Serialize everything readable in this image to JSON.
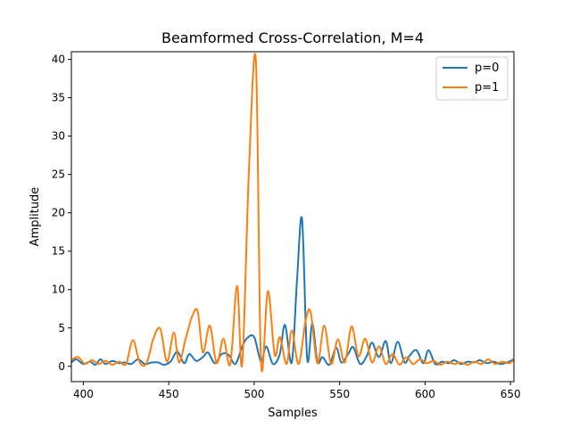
{
  "chart_data": {
    "type": "line",
    "title": "Beamformed Cross-Correlation, M=4",
    "xlabel": "Samples",
    "ylabel": "Amplitude",
    "xlim": [
      393,
      652
    ],
    "ylim": [
      -2,
      41
    ],
    "xticks": [
      400,
      450,
      500,
      550,
      600,
      650
    ],
    "yticks": [
      0,
      5,
      10,
      15,
      20,
      25,
      30,
      35,
      40
    ],
    "grid": false,
    "legend_position": "top-right",
    "series": [
      {
        "name": "p=0",
        "color": "#1f77b4",
        "x": [
          393,
          396,
          400,
          404,
          407,
          410,
          413,
          417,
          421,
          424,
          428,
          432,
          436,
          440,
          444,
          447,
          451,
          455,
          459,
          462,
          466,
          470,
          473,
          477,
          481,
          485,
          489,
          493,
          496,
          500,
          504,
          507,
          511,
          515,
          518,
          522,
          525,
          528,
          531,
          534,
          537,
          540,
          544,
          548,
          551,
          555,
          558,
          562,
          566,
          569,
          573,
          577,
          580,
          584,
          588,
          591,
          595,
          599,
          602,
          606,
          610,
          614,
          617,
          621,
          625,
          629,
          632,
          636,
          640,
          644,
          648,
          652
        ],
        "values": [
          0.5,
          0.9,
          0.3,
          0.6,
          0.2,
          0.9,
          0.3,
          0.7,
          0.4,
          0.5,
          0.3,
          0.9,
          0.3,
          0.5,
          0.5,
          0.2,
          0.6,
          1.9,
          0.4,
          1.6,
          0.7,
          1.2,
          1.8,
          0.4,
          1.6,
          1.5,
          0.3,
          2.6,
          3.7,
          3.8,
          0.6,
          2.6,
          0.3,
          1.6,
          5.4,
          0.5,
          11.0,
          19.2,
          1.0,
          5.6,
          0.6,
          1.2,
          0.2,
          2.4,
          0.5,
          1.6,
          2.5,
          0.3,
          1.4,
          3.1,
          1.2,
          3.3,
          0.4,
          3.2,
          0.5,
          1.4,
          2.1,
          0.4,
          2.1,
          0.3,
          0.6,
          0.4,
          0.8,
          0.3,
          0.6,
          0.5,
          0.8,
          0.4,
          0.6,
          0.3,
          0.5,
          0.9
        ]
      },
      {
        "name": "p=1",
        "color": "#ff7f0e",
        "x": [
          393,
          397,
          401,
          405,
          409,
          413,
          417,
          421,
          425,
          429,
          433,
          437,
          441,
          445,
          449,
          453,
          456,
          460,
          464,
          467,
          470,
          474,
          478,
          482,
          486,
          490,
          493,
          497,
          501,
          504,
          508,
          512,
          515,
          519,
          522,
          526,
          530,
          533,
          537,
          541,
          545,
          549,
          553,
          557,
          561,
          565,
          569,
          573,
          577,
          581,
          585,
          589,
          593,
          597,
          601,
          605,
          609,
          613,
          617,
          621,
          625,
          629,
          633,
          637,
          641,
          645,
          649,
          652
        ],
        "values": [
          0.8,
          1.2,
          0.3,
          0.8,
          0.3,
          0.7,
          0.2,
          0.6,
          0.3,
          3.4,
          0.5,
          0.4,
          3.6,
          4.9,
          0.6,
          4.4,
          0.5,
          3.7,
          6.7,
          7.1,
          1.8,
          5.3,
          0.4,
          3.6,
          0.3,
          10.5,
          0.3,
          26.0,
          39.8,
          0.4,
          9.8,
          1.5,
          3.8,
          0.3,
          4.7,
          0.3,
          5.8,
          7.1,
          0.4,
          5.3,
          0.3,
          3.5,
          0.5,
          5.2,
          1.3,
          3.6,
          0.5,
          2.6,
          0.3,
          1.6,
          0.2,
          1.2,
          0.3,
          0.9,
          0.4,
          0.7,
          0.2,
          0.6,
          0.3,
          0.5,
          0.2,
          0.6,
          0.3,
          0.9,
          0.3,
          0.6,
          0.4,
          0.8
        ]
      }
    ]
  }
}
